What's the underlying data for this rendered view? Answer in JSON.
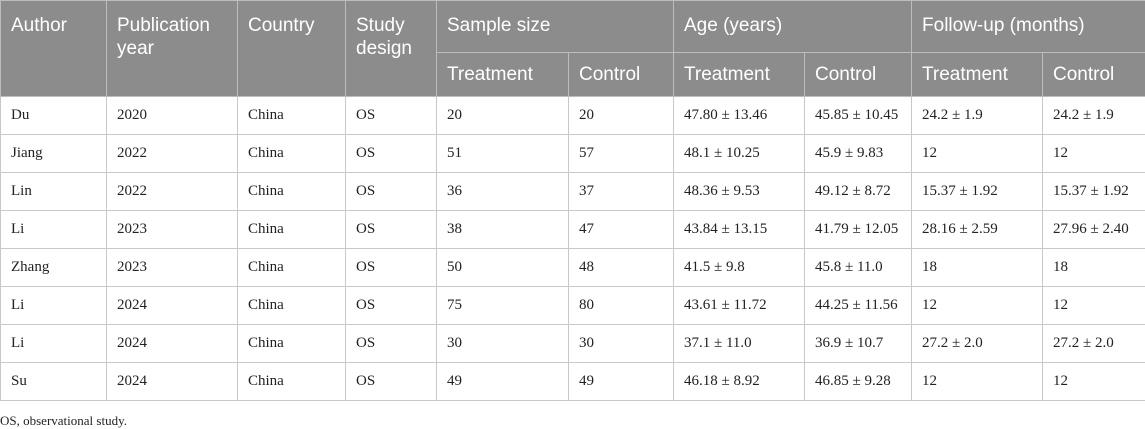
{
  "table": {
    "headers": {
      "author": "Author",
      "publication_year": "Publication year",
      "country": "Country",
      "study_design": "Study design",
      "sample_size": "Sample size",
      "age": "Age (years)",
      "follow_up": "Follow-up (months)",
      "treatment": "Treatment",
      "control": "Control"
    },
    "rows": [
      [
        "Du",
        "2020",
        "China",
        "OS",
        "20",
        "20",
        "47.80 ± 13.46",
        "45.85 ± 10.45",
        "24.2 ± 1.9",
        "24.2 ± 1.9"
      ],
      [
        "Jiang",
        "2022",
        "China",
        "OS",
        "51",
        "57",
        "48.1 ± 10.25",
        "45.9 ± 9.83",
        "12",
        "12"
      ],
      [
        "Lin",
        "2022",
        "China",
        "OS",
        "36",
        "37",
        "48.36 ± 9.53",
        "49.12 ± 8.72",
        "15.37 ± 1.92",
        "15.37 ± 1.92"
      ],
      [
        "Li",
        "2023",
        "China",
        "OS",
        "38",
        "47",
        "43.84 ± 13.15",
        "41.79 ± 12.05",
        "28.16 ± 2.59",
        "27.96 ± 2.40"
      ],
      [
        "Zhang",
        "2023",
        "China",
        "OS",
        "50",
        "48",
        "41.5 ± 9.8",
        "45.8 ± 11.0",
        "18",
        "18"
      ],
      [
        "Li",
        "2024",
        "China",
        "OS",
        "75",
        "80",
        "43.61 ± 11.72",
        "44.25 ± 11.56",
        "12",
        "12"
      ],
      [
        "Li",
        "2024",
        "China",
        "OS",
        "30",
        "30",
        "37.1 ± 11.0",
        "36.9 ± 10.7",
        "27.2 ± 2.0",
        "27.2 ± 2.0"
      ],
      [
        "Su",
        "2024",
        "China",
        "OS",
        "49",
        "49",
        "46.18 ± 8.92",
        "46.85 ± 9.28",
        "12",
        "12"
      ]
    ],
    "footnote": "OS, observational study."
  }
}
